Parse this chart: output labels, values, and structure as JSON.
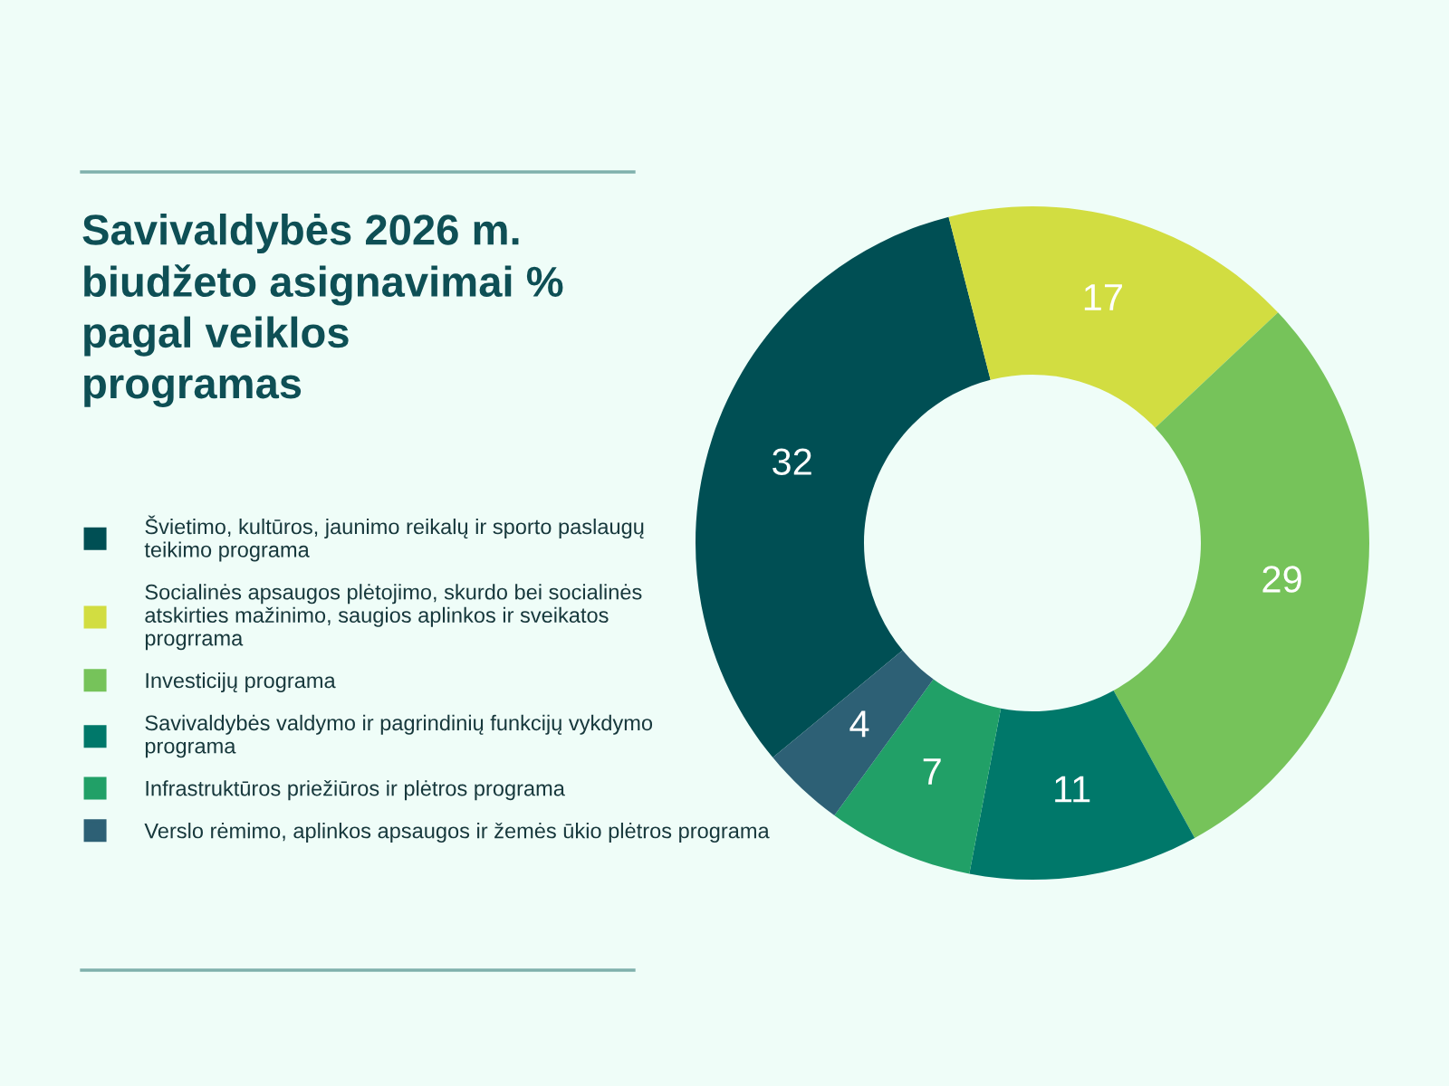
{
  "chart_data": {
    "type": "donut",
    "title": "Savivaldybės 2026 m.\nbiudžeto asignavimai %\npagal veiklos\nprogramas",
    "categories": [
      "Švietimo, kultūros, jaunimo reikalų ir sporto paslaugų\nteikimo programa",
      "Socialinės apsaugos plėtojimo, skurdo bei socialinės\natskirties mažinimo, saugios aplinkos ir sveikatos\nprogrrama",
      "Investicijų programa",
      "Savivaldybės valdymo ir pagrindinių funkcijų vykdymo\nprograma",
      "Infrastruktūros priežiūros ir plėtros programa",
      "Verslo rėmimo, aplinkos apsaugos ir žemės ūkio plėtros programa"
    ],
    "values": [
      32,
      17,
      29,
      11,
      7,
      4
    ],
    "colors": [
      "#004f54",
      "#d2dd41",
      "#76c35a",
      "#00786a",
      "#21a067",
      "#2d6075"
    ],
    "data_labels": true,
    "legend": "left"
  }
}
